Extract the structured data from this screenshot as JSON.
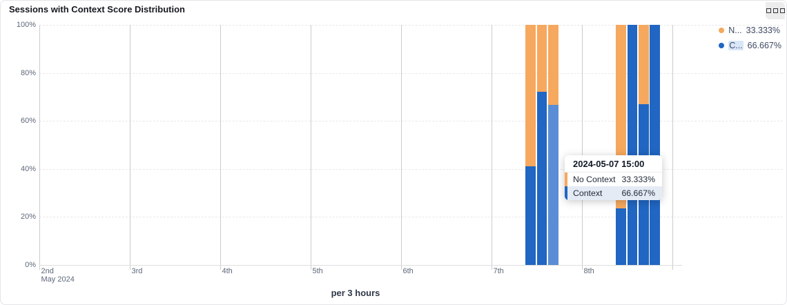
{
  "colors": {
    "context": "#2066c2",
    "context_highlight": "#5a8dd5",
    "no_context": "#f6a85e",
    "grid_vertical": "#cbcbcb",
    "grid_horizontal": "#e8e8e8",
    "axis_line": "#dfdfdf",
    "axis_text": "#5d6879",
    "tooltip_row_highlight": "#e4ebf5",
    "legend_name_highlight": "#d9e6f8"
  },
  "chart_data": {
    "type": "bar",
    "stacked": true,
    "title": "Sessions with Context Score Distribution",
    "xlabel": "per 3 hours",
    "ylabel": "",
    "ylim": [
      0,
      100
    ],
    "y_tick_labels": [
      "0%",
      "20%",
      "40%",
      "60%",
      "80%",
      "100%"
    ],
    "x_day_labels": [
      "2nd",
      "3rd",
      "4th",
      "5th",
      "6th",
      "7th",
      "8th"
    ],
    "x_month_label": "May 2024",
    "x_bucket_hours": 3,
    "grid": {
      "horizontal": "dashed",
      "vertical": "solid"
    },
    "legend_position": "top-right",
    "series_names": [
      "No Context",
      "Context"
    ],
    "bars": [
      {
        "time": "2024-05-07 09:00",
        "context_pct": 41,
        "no_context_pct": 59,
        "highlighted": false
      },
      {
        "time": "2024-05-07 12:00",
        "context_pct": 72,
        "no_context_pct": 28,
        "highlighted": false
      },
      {
        "time": "2024-05-07 15:00",
        "context_pct": 66.667,
        "no_context_pct": 33.333,
        "highlighted": true
      },
      {
        "time": "2024-05-08 09:00",
        "context_pct": 23.5,
        "no_context_pct": 76.5,
        "highlighted": false
      },
      {
        "time": "2024-05-08 12:00",
        "context_pct": 100,
        "no_context_pct": 0,
        "highlighted": false
      },
      {
        "time": "2024-05-08 15:00",
        "context_pct": 67,
        "no_context_pct": 33,
        "highlighted": false
      },
      {
        "time": "2024-05-08 18:00",
        "context_pct": 100,
        "no_context_pct": 0,
        "highlighted": false
      }
    ]
  },
  "legend": {
    "items": [
      {
        "label_display": "N...",
        "value": "33.333%",
        "series": "No Context",
        "color_key": "no_context",
        "name_highlighted": false
      },
      {
        "label_display": "C...",
        "value": "66.667%",
        "series": "Context",
        "color_key": "context",
        "name_highlighted": true
      }
    ]
  },
  "tooltip": {
    "title": "2024-05-07 15:00",
    "rows": [
      {
        "label": "No Context",
        "value": "33.333%",
        "color_key": "no_context",
        "highlighted": false
      },
      {
        "label": "Context",
        "value": "66.667%",
        "color_key": "context",
        "highlighted": true
      }
    ]
  }
}
